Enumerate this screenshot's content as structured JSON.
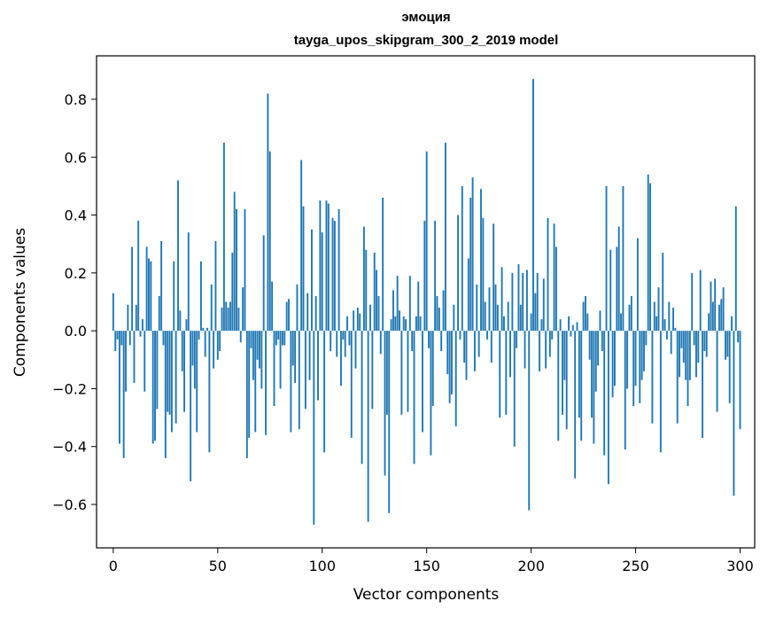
{
  "chart_data": {
    "type": "bar",
    "title": "эмоция",
    "subtitle": "tayga_upos_skipgram_300_2_2019 model",
    "xlabel": "Vector components",
    "ylabel": "Components values",
    "xlim": [
      -8,
      307
    ],
    "ylim": [
      -0.75,
      0.95
    ],
    "xticks": [
      0,
      50,
      100,
      150,
      200,
      250,
      300
    ],
    "yticks": [
      -0.6,
      -0.4,
      -0.2,
      0.0,
      0.2,
      0.4,
      0.6,
      0.8
    ],
    "ytick_labels": [
      "−0.6",
      "−0.4",
      "−0.2",
      "0.0",
      "0.2",
      "0.4",
      "0.6",
      "0.8"
    ],
    "bar_color": "#1f77b4",
    "grid": false,
    "values": [
      0.13,
      -0.07,
      -0.03,
      -0.39,
      -0.05,
      -0.44,
      -0.21,
      0.09,
      -0.05,
      0.29,
      -0.18,
      0.09,
      0.38,
      -0.02,
      0.04,
      -0.21,
      0.29,
      0.25,
      0.24,
      -0.39,
      -0.38,
      -0.27,
      0.12,
      0.31,
      -0.05,
      -0.44,
      -0.28,
      -0.29,
      -0.35,
      0.24,
      -0.32,
      0.52,
      0.07,
      -0.14,
      -0.28,
      0.04,
      0.34,
      -0.52,
      -0.12,
      -0.2,
      -0.35,
      -0.03,
      0.24,
      0.01,
      -0.09,
      0.01,
      -0.42,
      0.16,
      -0.13,
      0.31,
      -0.1,
      -0.07,
      0.08,
      0.65,
      0.1,
      0.08,
      0.1,
      0.27,
      0.48,
      0.42,
      0.08,
      -0.04,
      0.15,
      0.42,
      -0.44,
      -0.37,
      -0.06,
      -0.17,
      -0.35,
      -0.1,
      -0.13,
      -0.2,
      0.33,
      -0.36,
      0.82,
      0.62,
      0.17,
      -0.26,
      -0.05,
      -0.03,
      -0.2,
      -0.05,
      -0.05,
      0.1,
      0.11,
      -0.35,
      -0.12,
      -0.18,
      0.16,
      -0.34,
      0.59,
      0.43,
      -0.27,
      0.13,
      -0.17,
      0.35,
      -0.67,
      0.12,
      -0.24,
      0.45,
      0.34,
      -0.42,
      0.45,
      0.44,
      -0.07,
      0.39,
      0.38,
      -0.09,
      0.42,
      -0.19,
      -0.03,
      -0.09,
      0.05,
      -0.05,
      -0.37,
      0.07,
      -0.13,
      0.08,
      0.06,
      -0.46,
      0.36,
      0.28,
      -0.66,
      0.09,
      -0.27,
      0.27,
      0.21,
      0.12,
      -0.08,
      0.46,
      -0.5,
      -0.29,
      -0.63,
      0.04,
      0.14,
      0.05,
      0.19,
      0.07,
      -0.29,
      0.05,
      0.04,
      -0.28,
      0.19,
      -0.07,
      -0.46,
      0.05,
      0.17,
      0.05,
      -0.35,
      0.38,
      0.62,
      -0.06,
      -0.43,
      -0.26,
      0.38,
      0.12,
      0.08,
      -0.07,
      0.14,
      0.65,
      -0.15,
      -0.25,
      -0.22,
      0.09,
      -0.33,
      0.4,
      -0.03,
      0.5,
      -0.11,
      -0.17,
      0.25,
      0.46,
      0.53,
      -0.14,
      0.16,
      -0.09,
      0.49,
      0.39,
      0.1,
      -0.03,
      0.15,
      -0.11,
      0.37,
      0.16,
      0.09,
      -0.3,
      0.22,
      0.05,
      -0.29,
      0.1,
      -0.16,
      0.2,
      -0.4,
      -0.06,
      0.23,
      0.09,
      0.2,
      -0.13,
      0.21,
      -0.62,
      0.06,
      0.87,
      0.13,
      0.2,
      -0.14,
      0.04,
      0.18,
      -0.13,
      0.39,
      -0.09,
      -0.03,
      0.37,
      0.29,
      -0.38,
      0.04,
      -0.29,
      -0.17,
      -0.34,
      0.05,
      -0.02,
      0.02,
      -0.51,
      0.03,
      -0.3,
      -0.38,
      0.1,
      0.12,
      0.06,
      -0.1,
      -0.3,
      -0.39,
      -0.21,
      -0.12,
      0.07,
      -0.07,
      -0.43,
      0.5,
      -0.53,
      0.28,
      -0.23,
      -0.19,
      0.29,
      0.36,
      0.06,
      0.5,
      -0.41,
      -0.2,
      0.09,
      0.12,
      -0.26,
      -0.19,
      0.32,
      -0.25,
      -0.17,
      -0.14,
      -0.05,
      0.54,
      0.51,
      -0.32,
      0.1,
      0.05,
      0.15,
      -0.42,
      0.27,
      0.04,
      -0.03,
      0.1,
      -0.08,
      0.08,
      0.01,
      -0.32,
      -0.16,
      -0.06,
      -0.11,
      -0.17,
      -0.26,
      -0.17,
      0.2,
      -0.05,
      -0.16,
      -0.11,
      0.21,
      -0.37,
      -0.07,
      -0.09,
      0.06,
      0.17,
      0.1,
      0.18,
      -0.28,
      0.09,
      0.11,
      0.15,
      -0.1,
      -0.09,
      -0.25,
      0.05,
      -0.57,
      0.43,
      -0.04,
      -0.34
    ]
  }
}
